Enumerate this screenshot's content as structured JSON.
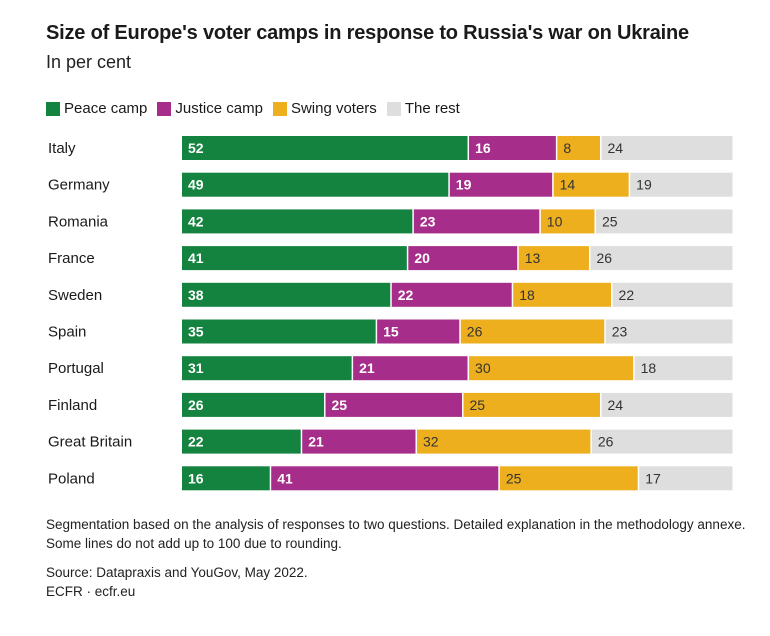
{
  "title": "Size of Europe's voter camps in response to Russia's war on Ukraine",
  "subtitle": "In per cent",
  "notes": "Segmentation based on the analysis of responses to two questions. Detailed explanation in the methodology annexe. Some lines do not add up to 100 due to rounding.",
  "source": "Source: Datapraxis and YouGov, May 2022.",
  "credit": "ECFR · ecfr.eu",
  "chart_data": {
    "type": "bar",
    "orientation": "horizontal",
    "stacked": true,
    "legend_position": "top-left",
    "grid": false,
    "categories": [
      "Italy",
      "Germany",
      "Romania",
      "France",
      "Sweden",
      "Spain",
      "Portugal",
      "Finland",
      "Great Britain",
      "Poland"
    ],
    "series": [
      {
        "name": "Peace camp",
        "color": "#14833f",
        "label_color": "#ffffff",
        "values": [
          52,
          49,
          42,
          41,
          38,
          35,
          31,
          26,
          22,
          16
        ]
      },
      {
        "name": "Justice camp",
        "color": "#a62d8a",
        "label_color": "#ffffff",
        "values": [
          16,
          19,
          23,
          20,
          22,
          15,
          21,
          25,
          21,
          41
        ]
      },
      {
        "name": "Swing voters",
        "color": "#eeaf1f",
        "label_color": "#333333",
        "values": [
          8,
          14,
          10,
          13,
          18,
          26,
          30,
          25,
          32,
          25
        ]
      },
      {
        "name": "The rest",
        "color": "#dedede",
        "label_color": "#333333",
        "values": [
          24,
          19,
          25,
          26,
          22,
          23,
          18,
          24,
          26,
          17
        ]
      }
    ]
  }
}
